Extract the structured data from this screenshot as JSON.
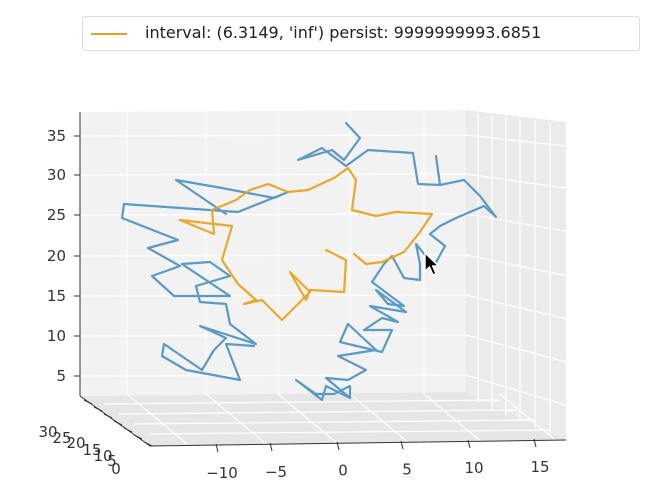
{
  "legend": {
    "label": "interval: (6.3149, 'inf') persist: 9999999993.6851",
    "color": "#e8a21a"
  },
  "chart_data": {
    "type": "line",
    "projection": "3d",
    "x_ticks": [
      "−10",
      "−5",
      "0",
      "5",
      "10",
      "15"
    ],
    "y_ticks": [
      "30",
      "25",
      "20",
      "15",
      "10",
      "5",
      "0"
    ],
    "z_ticks": [
      "35",
      "30",
      "25",
      "20",
      "15",
      "10",
      "5"
    ],
    "grid": true,
    "series": [
      {
        "color": "#4c92c3",
        "role": "full chain"
      },
      {
        "color": "#e8a21a",
        "role": "persistent interval",
        "name": "interval: (6.3149, 'inf') persist: 9999999993.6851"
      }
    ]
  }
}
